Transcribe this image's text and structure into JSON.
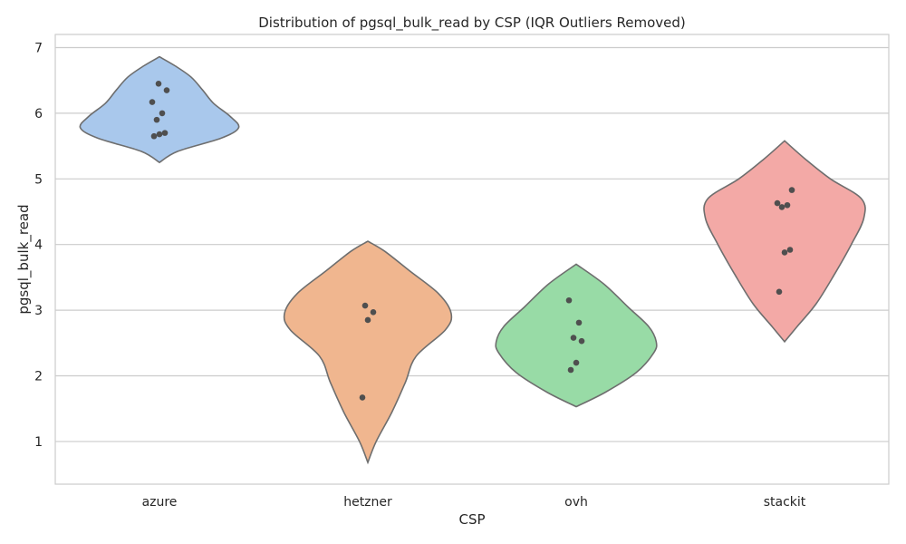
{
  "chart_data": {
    "type": "violin",
    "title": "Distribution of pgsql_bulk_read by CSP (IQR Outliers Removed)",
    "xlabel": "CSP",
    "ylabel": "pgsql_bulk_read",
    "ylim": [
      0.35,
      7.2
    ],
    "yticks": [
      "1",
      "2",
      "3",
      "4",
      "5",
      "6",
      "7"
    ],
    "grid": "horizontal",
    "categories": [
      "azure",
      "hetzner",
      "ovh",
      "stackit"
    ],
    "colors": {
      "azure": "#a9c8ec",
      "hetzner": "#f0b68f",
      "ovh": "#98dba6",
      "stackit": "#f3a9a6"
    },
    "series": [
      {
        "category": "azure",
        "values": [
          5.65,
          5.68,
          5.7,
          5.9,
          6.0,
          6.17,
          6.35,
          6.45
        ],
        "range": [
          5.25,
          6.86
        ],
        "density": [
          [
            5.25,
            0.0
          ],
          [
            5.42,
            0.22
          ],
          [
            5.62,
            0.74
          ],
          [
            5.78,
            0.95
          ],
          [
            5.95,
            0.85
          ],
          [
            6.15,
            0.65
          ],
          [
            6.35,
            0.52
          ],
          [
            6.55,
            0.38
          ],
          [
            6.72,
            0.19
          ],
          [
            6.86,
            0.0
          ]
        ]
      },
      {
        "category": "hetzner",
        "values": [
          1.67,
          2.85,
          2.97,
          3.07
        ],
        "range": [
          0.68,
          4.05
        ],
        "density": [
          [
            0.68,
            0.0
          ],
          [
            1.0,
            0.1
          ],
          [
            1.45,
            0.29
          ],
          [
            1.9,
            0.45
          ],
          [
            2.3,
            0.58
          ],
          [
            2.7,
            0.93
          ],
          [
            2.95,
            1.0
          ],
          [
            3.25,
            0.85
          ],
          [
            3.6,
            0.5
          ],
          [
            3.9,
            0.2
          ],
          [
            4.05,
            0.0
          ]
        ]
      },
      {
        "category": "ovh",
        "values": [
          2.09,
          2.2,
          2.53,
          2.58,
          2.81,
          3.15
        ],
        "range": [
          1.53,
          3.7
        ],
        "density": [
          [
            1.53,
            0.0
          ],
          [
            1.75,
            0.35
          ],
          [
            2.05,
            0.72
          ],
          [
            2.35,
            0.93
          ],
          [
            2.52,
            0.96
          ],
          [
            2.75,
            0.87
          ],
          [
            3.05,
            0.62
          ],
          [
            3.4,
            0.33
          ],
          [
            3.7,
            0.0
          ]
        ]
      },
      {
        "category": "stackit",
        "values": [
          3.28,
          3.88,
          3.92,
          4.57,
          4.6,
          4.63,
          4.83
        ],
        "range": [
          2.52,
          5.58
        ],
        "density": [
          [
            2.52,
            0.0
          ],
          [
            2.75,
            0.15
          ],
          [
            3.1,
            0.38
          ],
          [
            3.55,
            0.6
          ],
          [
            4.0,
            0.8
          ],
          [
            4.4,
            0.95
          ],
          [
            4.7,
            0.92
          ],
          [
            5.0,
            0.55
          ],
          [
            5.3,
            0.25
          ],
          [
            5.58,
            0.0
          ]
        ]
      }
    ]
  }
}
